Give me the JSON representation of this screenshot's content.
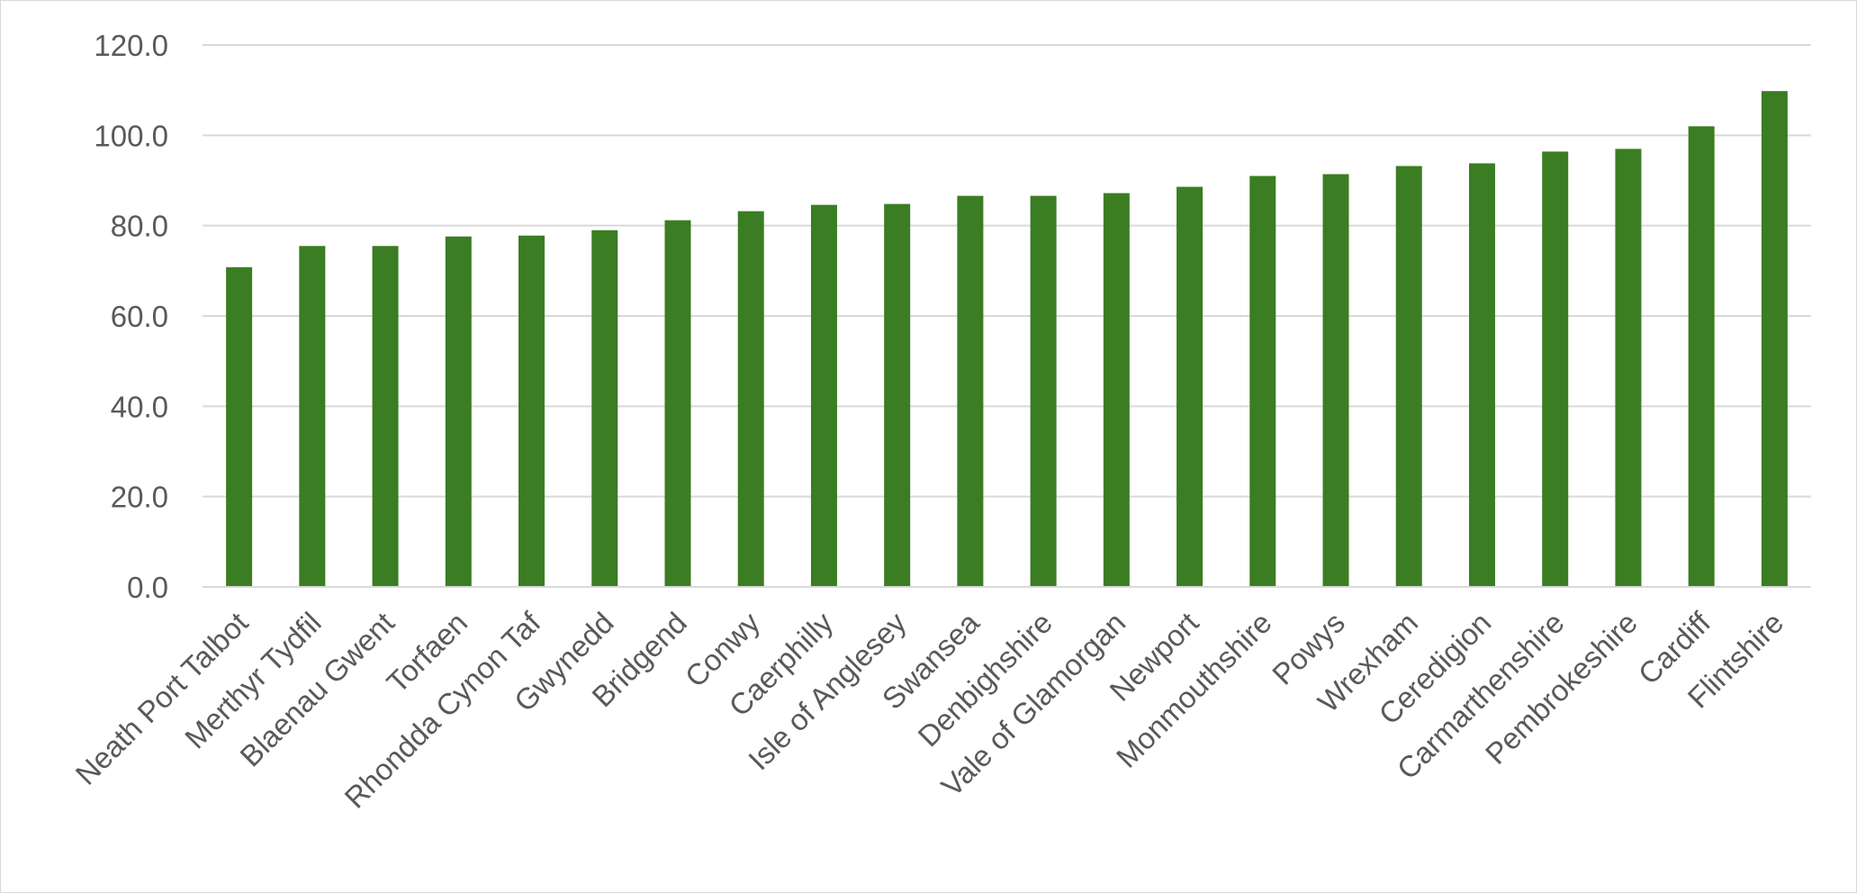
{
  "chart_data": {
    "type": "bar",
    "title": "",
    "xlabel": "",
    "ylabel": "",
    "ylim": [
      0,
      120
    ],
    "yticks": [
      "0.0",
      "20.0",
      "40.0",
      "60.0",
      "80.0",
      "100.0",
      "120.0"
    ],
    "grid": true,
    "legend": "none",
    "bar_color": "#3a7d22",
    "categories": [
      "Neath Port Talbot",
      "Merthyr Tydfil",
      "Blaenau Gwent",
      "Torfaen",
      "Rhondda Cynon Taf",
      "Gwynedd",
      "Bridgend",
      "Conwy",
      "Caerphilly",
      "Isle of Anglesey",
      "Swansea",
      "Denbighshire",
      "Vale of Glamorgan",
      "Newport",
      "Monmouthshire",
      "Powys",
      "Wrexham",
      "Ceredigion",
      "Carmarthenshire",
      "Pembrokeshire",
      "Cardiff",
      "Flintshire"
    ],
    "values": [
      70.8,
      75.5,
      75.5,
      77.6,
      77.8,
      79.0,
      81.2,
      83.2,
      84.6,
      84.8,
      86.6,
      86.6,
      87.2,
      88.6,
      91.0,
      91.4,
      93.2,
      93.8,
      96.4,
      97.0,
      102.0,
      109.8
    ]
  }
}
